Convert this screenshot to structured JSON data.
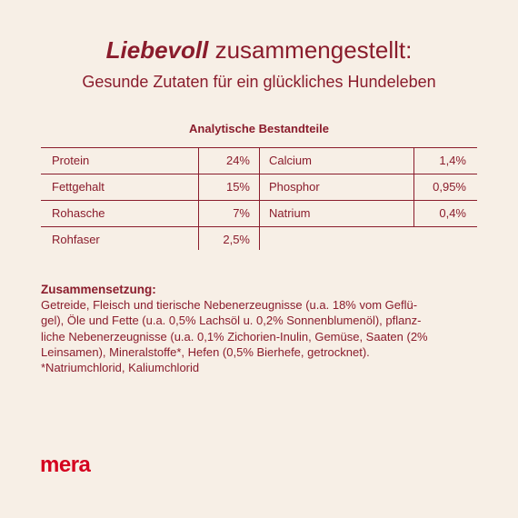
{
  "header": {
    "title_emphasis": "Liebevoll",
    "title_rest": "zusammengestellt:",
    "subtitle": "Gesunde Zutaten für ein glückliches Hundeleben"
  },
  "table": {
    "title": "Analytische Bestandteile",
    "rows": [
      [
        "Protein",
        "24%",
        "Calcium",
        "1,4%"
      ],
      [
        "Fettgehalt",
        "15%",
        "Phosphor",
        "0,95%"
      ],
      [
        "Rohasche",
        "7%",
        "Natrium",
        "0,4%"
      ],
      [
        "Rohfaser",
        "2,5%"
      ]
    ]
  },
  "composition": {
    "heading": "Zusammensetzung:",
    "lines": [
      "Getreide, Fleisch und tierische Nebenerzeugnisse (u.a. 18% vom Geflü-",
      "gel), Öle und Fette (u.a. 0,5% Lachsöl u. 0,2% Sonnenblumenöl), pflanz-",
      "liche Nebenerzeugnisse (u.a. 0,1% Zichorien-Inulin, Gemüse, Saaten (2%",
      "Leinsamen), Mineralstoffe*, Hefen (0,5% Bierhefe, getrocknet).",
      "*Natriumchlorid, Kaliumchlorid"
    ]
  },
  "logo": "mera"
}
